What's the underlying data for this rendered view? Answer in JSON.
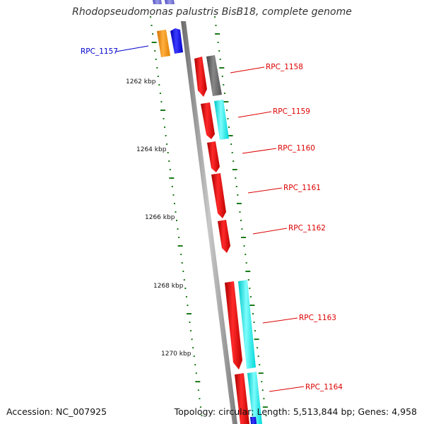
{
  "title": "Rhodopseudomonas palustris BisB18, complete genome",
  "footer": {
    "accession": "Accession: NC_007925",
    "stats": "Topology: circular; Length: 5,513,844 bp; Genes: 4,958"
  },
  "colors": {
    "backbone": "#8a8a8a",
    "tick": "#1a7a1a",
    "gene_red": "#ee0000",
    "gene_cyan": "#00f0f0",
    "gene_gray": "#666666",
    "gene_orange": "#f39000",
    "gene_blue": "#0000ee",
    "label_red": "#dd0000",
    "label_blue": "#0000cc"
  },
  "scale_labels": [
    {
      "text": "1262 kbp"
    },
    {
      "text": "1264 kbp"
    },
    {
      "text": "1266 kbp"
    },
    {
      "text": "1268 kbp"
    },
    {
      "text": "1270 kbp"
    }
  ],
  "genes": [
    {
      "label": "RPC_1157",
      "color": "blue"
    },
    {
      "label": "RPC_1158",
      "color": "red"
    },
    {
      "label": "RPC_1159",
      "color": "red"
    },
    {
      "label": "RPC_1160",
      "color": "red"
    },
    {
      "label": "RPC_1161",
      "color": "red"
    },
    {
      "label": "RPC_1162",
      "color": "red"
    },
    {
      "label": "RPC_1163",
      "color": "red"
    },
    {
      "label": "RPC_1164",
      "color": "red"
    }
  ]
}
